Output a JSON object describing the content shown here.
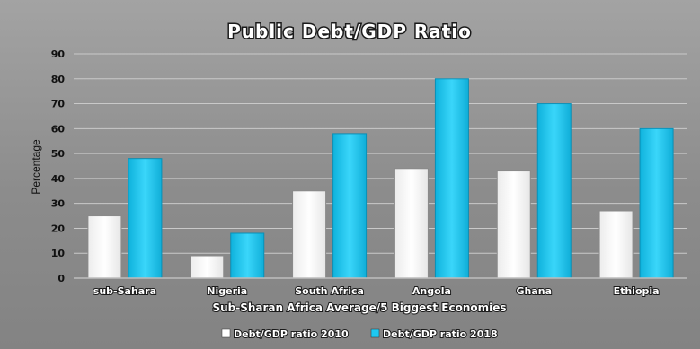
{
  "chart_data": {
    "type": "bar",
    "title": "Public Debt/GDP Ratio",
    "xlabel": "Sub-Sharan Africa Average/5 Biggest Economies",
    "ylabel": "Percentage",
    "ylim": [
      0,
      90
    ],
    "yticks": [
      0,
      10,
      20,
      30,
      40,
      50,
      60,
      70,
      80,
      90
    ],
    "grid": true,
    "legend_position": "bottom",
    "categories": [
      "sub-Sahara",
      "Nigeria",
      "South Africa",
      "Angola",
      "Ghana",
      "Ethiopia"
    ],
    "series": [
      {
        "name": "Debt/GDP ratio 2010",
        "color": "#ffffff",
        "values": [
          25,
          9,
          35,
          44,
          43,
          27
        ]
      },
      {
        "name": "Debt/GDP ratio 2018",
        "color": "#1ec8f0",
        "values": [
          48,
          18,
          58,
          80,
          70,
          60
        ]
      }
    ]
  }
}
